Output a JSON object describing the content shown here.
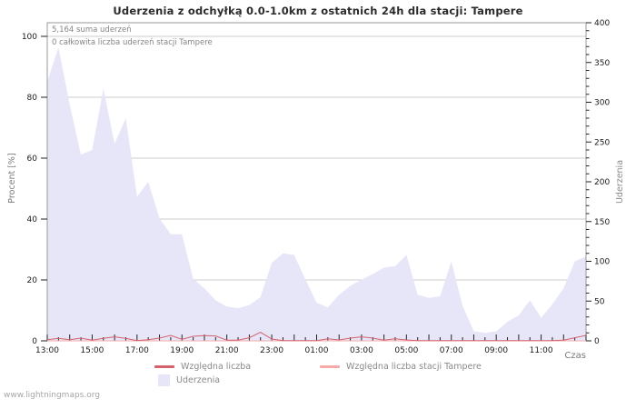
{
  "page": {
    "title": "Uderzenia z odchyłką 0.0-1.0km z ostatnich 24h dla stacji: Tampere",
    "watermark": "www.lightningmaps.org"
  },
  "annotations": {
    "sum": "5,164 suma uderzeń",
    "station": "0 całkowita liczba uderzeń stacji Tampere"
  },
  "legend": {
    "items": [
      {
        "label": "Względna liczba",
        "type": "line",
        "color": "#d4626c"
      },
      {
        "label": "Względna liczba stacji Tampere",
        "type": "line",
        "color": "#f6abab"
      },
      {
        "label": "Uderzenia",
        "type": "area",
        "color": "#e6e6f8"
      }
    ]
  },
  "chart_data": {
    "type": "area",
    "title": "Uderzenia z odchyłką 0.0-1.0km z ostatnich 24h dla stacji: Tampere",
    "x_axis": {
      "title": "Czas",
      "labels": [
        "13:00",
        "15:00",
        "17:00",
        "19:00",
        "21:00",
        "23:00",
        "01:00",
        "03:00",
        "05:00",
        "07:00",
        "09:00",
        "11:00"
      ],
      "label_bin_step": 4
    },
    "left_axis": {
      "title": "Procent [%]",
      "range": [
        0,
        100
      ],
      "ticks": [
        0,
        20,
        40,
        60,
        80,
        100
      ]
    },
    "right_axis": {
      "title": "Uderzenia",
      "range": [
        0,
        400
      ],
      "major_ticks": [
        0,
        50,
        100,
        150,
        200,
        250,
        300,
        350,
        400
      ],
      "minor_step": 10
    },
    "grid": "horizontal",
    "legend_position": "bottom",
    "x_times": [
      "13:00",
      "13:30",
      "14:00",
      "14:30",
      "15:00",
      "15:30",
      "16:00",
      "16:30",
      "17:00",
      "17:30",
      "18:00",
      "18:30",
      "19:00",
      "19:30",
      "20:00",
      "20:30",
      "21:00",
      "21:30",
      "22:00",
      "22:30",
      "23:00",
      "23:30",
      "00:00",
      "00:30",
      "01:00",
      "01:30",
      "02:00",
      "02:30",
      "03:00",
      "03:30",
      "04:00",
      "04:30",
      "05:00",
      "05:30",
      "06:00",
      "06:30",
      "07:00",
      "07:30",
      "08:00",
      "08:30",
      "09:00",
      "09:30",
      "10:00",
      "10:30",
      "11:00",
      "11:30",
      "12:00",
      "12:30",
      "13:00"
    ],
    "series": [
      {
        "name": "Uderzenia",
        "type": "area",
        "axis": "right",
        "color": "#e6e6f8",
        "values": [
          326,
          369,
          297,
          234,
          240,
          317,
          248,
          280,
          181,
          200,
          154,
          134,
          134,
          78,
          66,
          51,
          43,
          41,
          45,
          55,
          98,
          110,
          108,
          77,
          48,
          42,
          58,
          69,
          77,
          84,
          92,
          94,
          108,
          58,
          54,
          56,
          100,
          44,
          12,
          10,
          12,
          24,
          32,
          51,
          29,
          46,
          66,
          100,
          106
        ]
      },
      {
        "name": "Względna liczba stacji Tampere",
        "type": "line",
        "axis": "left",
        "color": "#f6abab",
        "values": [
          0,
          0,
          0,
          0,
          0,
          0,
          0,
          0,
          0,
          0,
          0,
          0,
          0,
          0,
          0,
          0,
          0,
          0,
          0,
          0,
          0,
          0,
          0,
          0,
          0,
          0,
          0,
          0,
          0,
          0,
          0,
          0,
          0,
          0,
          0,
          0,
          0,
          0,
          0,
          0,
          0,
          0,
          0,
          0,
          0,
          0,
          0,
          0,
          0
        ]
      },
      {
        "name": "Względna liczba",
        "type": "line",
        "axis": "left",
        "color": "#d4626c",
        "values": [
          0.4,
          0.8,
          0.4,
          0.9,
          0.2,
          0.8,
          1.3,
          0.8,
          0.1,
          0.4,
          0.9,
          1.8,
          0.5,
          1.5,
          1.7,
          1.6,
          0.2,
          0.2,
          1.0,
          2.8,
          0.6,
          0.1,
          0.1,
          0.1,
          0.1,
          0.7,
          0.3,
          0.9,
          1.3,
          0.9,
          0.2,
          0.7,
          0.3,
          0.1,
          0.1,
          0.1,
          0.1,
          0.1,
          0.1,
          0.1,
          0.1,
          0.1,
          0.1,
          0.1,
          0.1,
          0.1,
          0.2,
          1.0,
          1.8
        ]
      }
    ],
    "colors": {
      "grid": "#cdcdcd",
      "frame": "#9a9a9a",
      "bottom_axis": "#4a4a4a",
      "tick": "#222222",
      "tick_label": "#1a1a1a"
    }
  }
}
